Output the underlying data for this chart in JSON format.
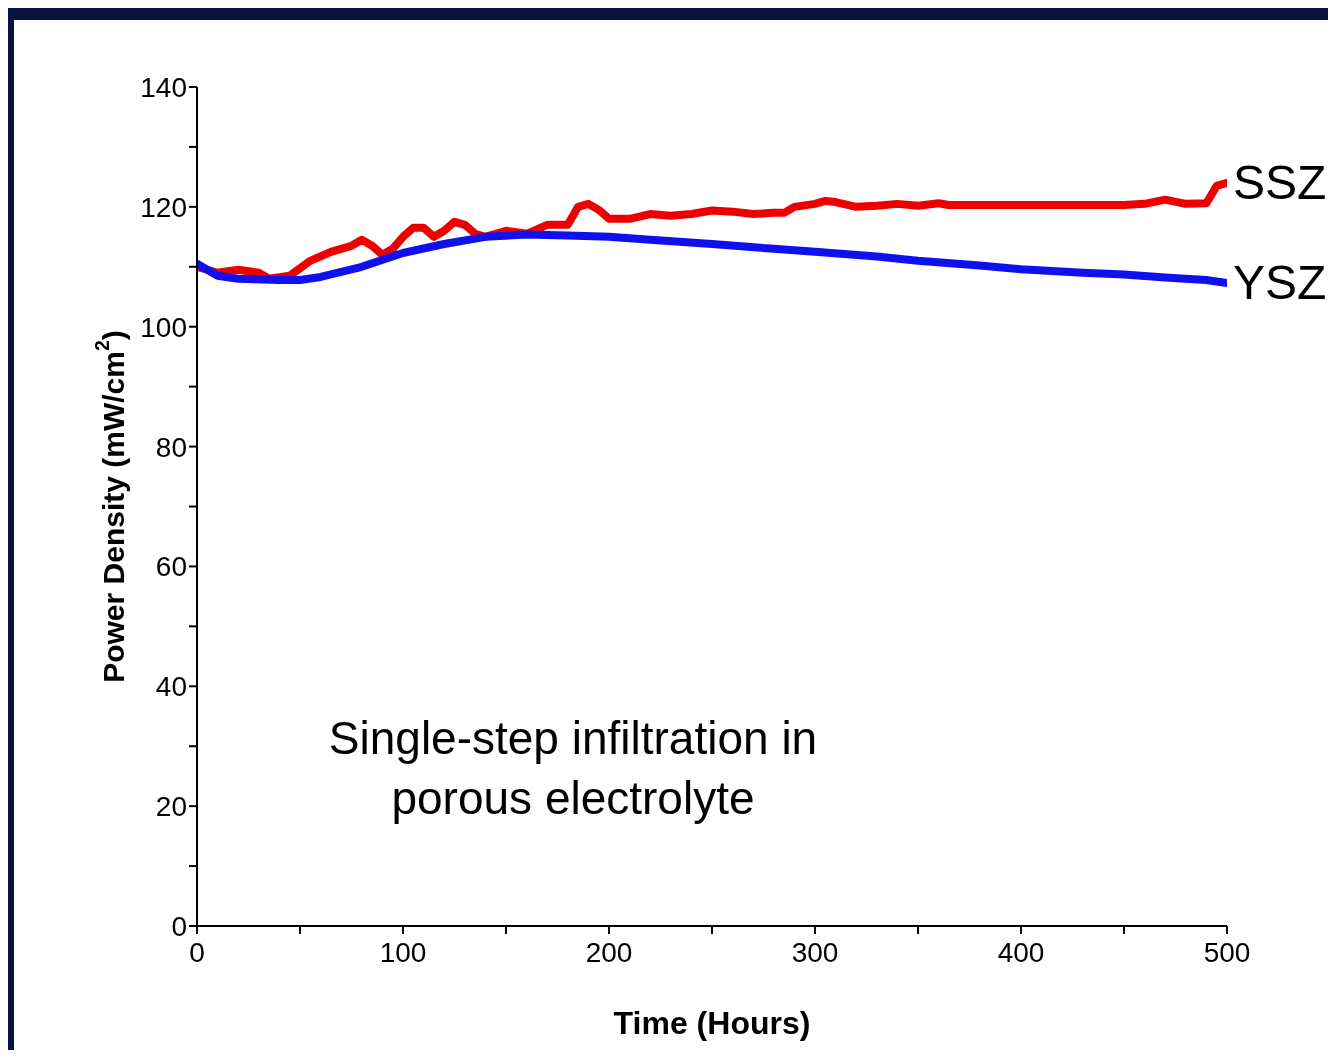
{
  "chart_data": {
    "type": "line",
    "xlabel": "Time (Hours)",
    "ylabel": "Power Density (mW/cm$^{2}$)",
    "annotations": [
      "Single-step infiltration in porous electrolyte"
    ],
    "xlim": [
      0,
      500
    ],
    "xticks": [
      0,
      {
        "value": 50,
        "label": null
      },
      100,
      {
        "value": 150,
        "label": null
      },
      200,
      {
        "value": 250,
        "label": null
      },
      300,
      {
        "value": 350,
        "label": null
      },
      400,
      {
        "value": 450,
        "label": null
      },
      500
    ],
    "ylim": [
      0,
      140
    ],
    "yticks": [
      0,
      {
        "value": 10,
        "label": null
      },
      20,
      {
        "value": 30,
        "label": null
      },
      40,
      {
        "value": 50,
        "label": null
      },
      60,
      {
        "value": 70,
        "label": null
      },
      80,
      {
        "value": 90,
        "label": null
      },
      100,
      {
        "value": 110,
        "label": null
      },
      120,
      {
        "value": 130,
        "label": null
      },
      140
    ],
    "grid": false,
    "legend": false,
    "marker": "none",
    "line_style": "solid",
    "series": [
      {
        "name": "SSZ",
        "color": "#ee0000",
        "x": [
          0,
          10,
          20,
          30,
          35,
          45,
          55,
          65,
          75,
          80,
          85,
          90,
          95,
          100,
          105,
          110,
          115,
          120,
          125,
          130,
          135,
          140,
          150,
          160,
          170,
          180,
          185,
          190,
          195,
          200,
          210,
          220,
          230,
          240,
          250,
          260,
          270,
          280,
          285,
          290,
          300,
          305,
          310,
          320,
          330,
          340,
          350,
          360,
          365,
          400,
          450,
          460,
          470,
          480,
          490,
          495,
          500
        ],
        "values": [
          110,
          109,
          109.5,
          109,
          108,
          108.5,
          111,
          112.5,
          113.5,
          114.5,
          113.5,
          112,
          113,
          115,
          116.5,
          116.5,
          115,
          116,
          117.5,
          117,
          115.5,
          115,
          116,
          115.5,
          117,
          117,
          120,
          120.5,
          119.5,
          118,
          118,
          118.8,
          118.5,
          118.8,
          119.4,
          119.2,
          118.8,
          119,
          119,
          120,
          120.5,
          121,
          120.8,
          120,
          120.2,
          120.5,
          120.2,
          120.6,
          120.3,
          120.3,
          120.3,
          120.5,
          121.2,
          120.5,
          120.6,
          123.5,
          124
        ]
      },
      {
        "name": "YSZ",
        "color": "#1010ee",
        "x": [
          0,
          5,
          10,
          20,
          40,
          50,
          60,
          80,
          100,
          120,
          140,
          160,
          180,
          200,
          220,
          250,
          280,
          300,
          330,
          350,
          380,
          400,
          430,
          450,
          470,
          490,
          500
        ],
        "values": [
          110.5,
          109.5,
          108.5,
          108,
          107.8,
          107.8,
          108.3,
          110,
          112.3,
          113.8,
          115,
          115.4,
          115.2,
          115,
          114.5,
          113.8,
          113,
          112.5,
          111.7,
          111,
          110.2,
          109.6,
          109,
          108.7,
          108.2,
          107.8,
          107.3
        ]
      }
    ]
  }
}
